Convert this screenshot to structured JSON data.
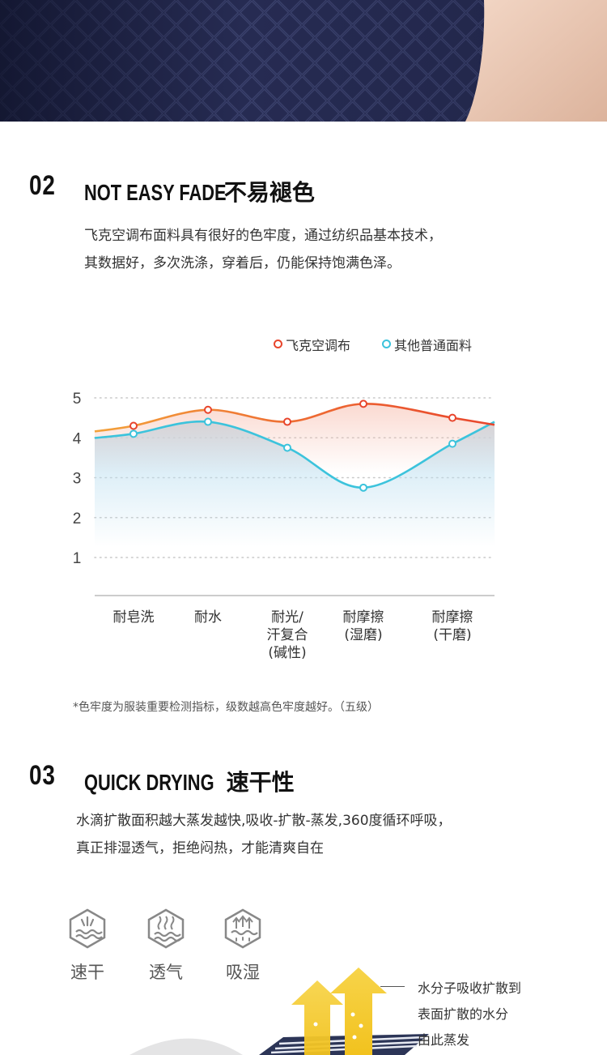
{
  "section2": {
    "number": "02",
    "title_en": "NOT EASY  FADE",
    "title_cn": "不易褪色",
    "desc_line1": "飞克空调布面料具有很好的色牢度，通过纺织品基本技术，",
    "desc_line2": "其数据好，多次洗涤，穿着后，仍能保持饱满色泽。"
  },
  "legend": {
    "series_a": "飞克空调布",
    "series_b": "其他普通面料"
  },
  "colors": {
    "series_a": "#e8452c",
    "series_b": "#3cc3dc",
    "series_a_fill": "#f6b8a8",
    "series_b_fill": "#bcdff0"
  },
  "chart_data": {
    "type": "line",
    "categories": [
      [
        "耐皂洗"
      ],
      [
        "耐水"
      ],
      [
        "耐光/",
        "汗复合",
        "(碱性)"
      ],
      [
        "耐摩擦",
        "(湿磨)"
      ],
      [
        "耐摩擦",
        "(干磨)"
      ]
    ],
    "series": [
      {
        "name": "飞克空调布",
        "values": [
          4.3,
          4.7,
          4.4,
          4.85,
          4.5
        ]
      },
      {
        "name": "其他普通面料",
        "values": [
          4.1,
          4.4,
          3.75,
          2.75,
          3.85
        ]
      }
    ],
    "yticks": [
      "1",
      "2",
      "3",
      "4",
      "5"
    ],
    "ylim": [
      0,
      5
    ],
    "grid": true,
    "legend_position": "top-right"
  },
  "footnote": "*色牢度为服装重要检测指标，级数越高色牢度越好。（五级）",
  "section3": {
    "number": "03",
    "title_en": "QUICK DRYING",
    "title_cn": "速干性",
    "desc_line1": "水滴扩散面积越大蒸发越快,吸收-扩散-蒸发,360度循环呼吸，",
    "desc_line2": "真正排湿透气，拒绝闷热，才能清爽自在"
  },
  "features": [
    {
      "label": "速干",
      "icon": "quick-dry-icon"
    },
    {
      "label": "透气",
      "icon": "breathable-icon"
    },
    {
      "label": "吸湿",
      "icon": "moisture-absorb-icon"
    }
  ],
  "callout": {
    "line1": "水分子吸收扩散到",
    "line2": "表面扩散的水分",
    "line3": "由此蒸发"
  }
}
